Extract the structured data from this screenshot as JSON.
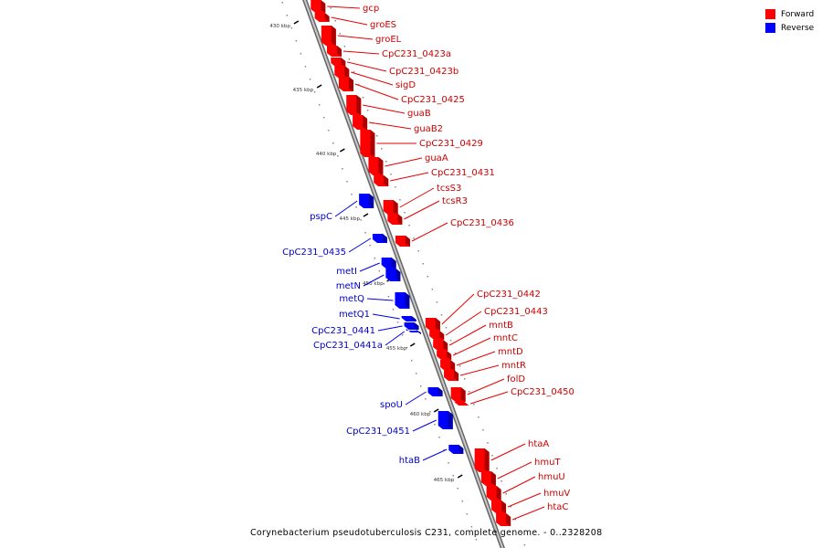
{
  "legend": {
    "forward": {
      "label": "Forward",
      "color": "#ff0000"
    },
    "reverse": {
      "label": "Reverse",
      "color": "#0000ff"
    }
  },
  "caption": "Corynebacterium pseudotuberculosis C231, complete genome. - 0..2328208",
  "scale": {
    "ticks": [
      "430 kbp",
      "435 kbp",
      "440 kbp",
      "445 kbp",
      "450 kbp",
      "455 kbp",
      "460 kbp",
      "465 kbp"
    ]
  },
  "forward_genes": [
    "gcp",
    "groES",
    "groEL",
    "CpC231_0423a",
    "CpC231_0423b",
    "sigD",
    "CpC231_0425",
    "guaB",
    "guaB2",
    "CpC231_0429",
    "guaA",
    "CpC231_0431",
    "tcsS3",
    "tcsR3",
    "CpC231_0436",
    "CpC231_0442",
    "CpC231_0443",
    "mntB",
    "mntC",
    "mntD",
    "mntR",
    "folD",
    "CpC231_0450",
    "htaA",
    "hmuT",
    "hmuU",
    "hmuV",
    "htaC"
  ],
  "reverse_genes": [
    "pspC",
    "CpC231_0435",
    "metI",
    "metN",
    "metQ",
    "metQ1",
    "CpC231_0441",
    "CpC231_0441a",
    "spoU",
    "CpC231_0451",
    "htaB"
  ]
}
